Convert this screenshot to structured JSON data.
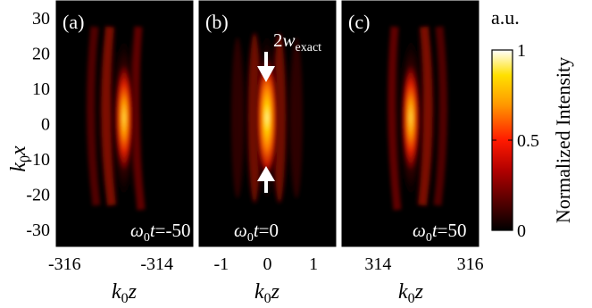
{
  "figure": {
    "y_axis": {
      "label_main": "k",
      "label_sub": "0",
      "label_var": "x",
      "ticks": [
        30,
        20,
        10,
        0,
        -10,
        -20,
        -30
      ]
    },
    "x_axis": {
      "label_main": "k",
      "label_sub": "0",
      "label_var": "z"
    },
    "panels": [
      {
        "label": "(a)",
        "time_main": "ω",
        "time_sub": "0",
        "time_var": "t",
        "time_value": "=-50",
        "x_ticks": [
          "-316",
          "-314"
        ],
        "x_tick_values": [
          -316,
          -314
        ],
        "x_range": [
          -316.2,
          -313.2
        ]
      },
      {
        "label": "(b)",
        "time_main": "ω",
        "time_sub": "0",
        "time_var": "t",
        "time_value": "=0",
        "x_ticks": [
          "-1",
          "0",
          "1"
        ],
        "x_tick_values": [
          -1,
          0,
          1
        ],
        "x_range": [
          -1.5,
          1.5
        ],
        "annotation_prefix": "2",
        "annotation_main": "w",
        "annotation_sub": "exact"
      },
      {
        "label": "(c)",
        "time_main": "ω",
        "time_sub": "0",
        "time_var": "t",
        "time_value": "=50",
        "x_ticks": [
          "314",
          "316"
        ],
        "x_tick_values": [
          314,
          316
        ],
        "x_range": [
          313.2,
          316.2
        ]
      }
    ],
    "colorbar": {
      "unit": "a.u.",
      "label": "Normalized Intensity",
      "ticks": [
        "1",
        "0.5",
        "0"
      ],
      "tick_values": [
        1,
        0.5,
        0
      ],
      "colormap": "hot"
    }
  },
  "chart_data": {
    "type": "heatmap",
    "colormap": "hot",
    "y_range": [
      -35,
      35
    ],
    "color_range": [
      0,
      1
    ],
    "panels": [
      "(a)",
      "(b)",
      "(c)"
    ]
  }
}
